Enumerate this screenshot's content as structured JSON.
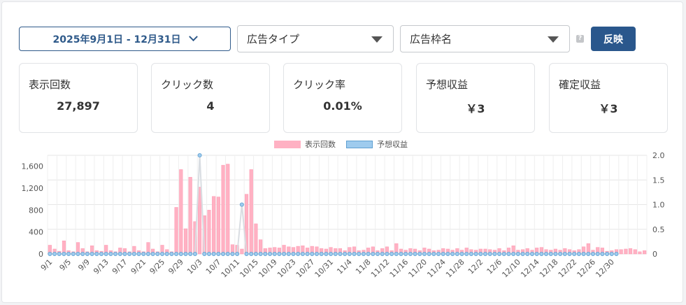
{
  "filters": {
    "date_range": "2025年9月1日 - 12月31日",
    "ad_type_placeholder": "広告タイプ",
    "ad_slot_placeholder": "広告枠名",
    "help_glyph": "?",
    "apply_label": "反映"
  },
  "cards": [
    {
      "label": "表示回数",
      "value": "27,897"
    },
    {
      "label": "クリック数",
      "value": "4"
    },
    {
      "label": "クリック率",
      "value": "0.01%"
    },
    {
      "label": "予想収益",
      "value": "￥3"
    },
    {
      "label": "確定収益",
      "value": "￥3"
    }
  ],
  "colors": {
    "bar": "#ffb1c3",
    "bar_stroke": "#ff8fab",
    "line": "#9ecbee",
    "line_stroke": "#5e9fd0",
    "accent": "#2a578c"
  },
  "chart_data": {
    "type": "bar",
    "title": "",
    "xlabel": "",
    "ylabel": "",
    "y_left_ticks": [
      "1,600",
      "1,200",
      "800",
      "400",
      "0"
    ],
    "y_right_ticks": [
      "2.0",
      "1.5",
      "1.0",
      "0.5",
      "0"
    ],
    "ylim_left": [
      0,
      1800
    ],
    "ylim_right": [
      0,
      2.0
    ],
    "x_tick_labels": [
      "9/1",
      "9/5",
      "9/9",
      "9/13",
      "9/17",
      "9/21",
      "9/25",
      "9/29",
      "10/3",
      "10/7",
      "10/11",
      "10/15",
      "10/19",
      "10/23",
      "10/27",
      "10/31",
      "11/4",
      "11/8",
      "11/12",
      "11/16",
      "11/20",
      "11/24",
      "11/28",
      "12/2",
      "12/6",
      "12/10",
      "12/14",
      "12/18",
      "12/22",
      "12/26",
      "12/30"
    ],
    "series": [
      {
        "name": "表示回数",
        "axis": "left",
        "values": [
          160,
          90,
          50,
          240,
          60,
          40,
          210,
          100,
          40,
          150,
          60,
          50,
          160,
          60,
          40,
          110,
          100,
          40,
          140,
          60,
          40,
          210,
          90,
          40,
          160,
          80,
          40,
          850,
          1540,
          460,
          1400,
          590,
          1220,
          700,
          800,
          1050,
          1040,
          1620,
          1640,
          170,
          160,
          90,
          1090,
          1540,
          550,
          260,
          100,
          110,
          120,
          110,
          160,
          130,
          120,
          140,
          150,
          110,
          140,
          130,
          100,
          90,
          120,
          100,
          100,
          60,
          120,
          130,
          60,
          70,
          110,
          130,
          60,
          100,
          130,
          60,
          190,
          90,
          70,
          100,
          90,
          60,
          110,
          90,
          60,
          70,
          100,
          90,
          70,
          100,
          70,
          110,
          80,
          70,
          90,
          90,
          80,
          70,
          100,
          60,
          110,
          150,
          70,
          80,
          100,
          70,
          110,
          120,
          80,
          70,
          90,
          70,
          100,
          80,
          60,
          80,
          130,
          190,
          70,
          120,
          110,
          50,
          60,
          80,
          80,
          90,
          100,
          80,
          40,
          60
        ]
      },
      {
        "name": "予想収益",
        "axis": "right",
        "values": [
          0,
          0,
          0,
          0,
          0,
          0,
          0,
          0,
          0,
          0,
          0,
          0,
          0,
          0,
          0,
          0,
          0,
          0,
          0,
          0,
          0,
          0,
          0,
          0,
          0,
          0,
          0,
          0,
          0,
          0,
          0,
          0,
          2,
          0,
          0,
          0,
          0,
          0,
          0,
          0,
          0,
          1,
          0,
          0,
          0,
          0,
          0,
          0,
          0,
          0,
          0,
          0,
          0,
          0,
          0,
          0,
          0,
          0,
          0,
          0,
          0,
          0,
          0,
          0,
          0,
          0,
          0,
          0,
          0,
          0,
          0,
          0,
          0,
          0,
          0,
          0,
          0,
          0,
          0,
          0,
          0,
          0,
          0,
          0,
          0,
          0,
          0,
          0,
          0,
          0,
          0,
          0,
          0,
          0,
          0,
          0,
          0,
          0,
          0,
          0,
          0,
          0,
          0,
          0,
          0,
          0,
          0,
          0,
          0,
          0,
          0,
          0,
          0,
          0,
          0,
          0,
          0,
          0,
          0,
          0,
          0,
          0
        ]
      }
    ],
    "legend_position": "top-center",
    "grid": true
  }
}
